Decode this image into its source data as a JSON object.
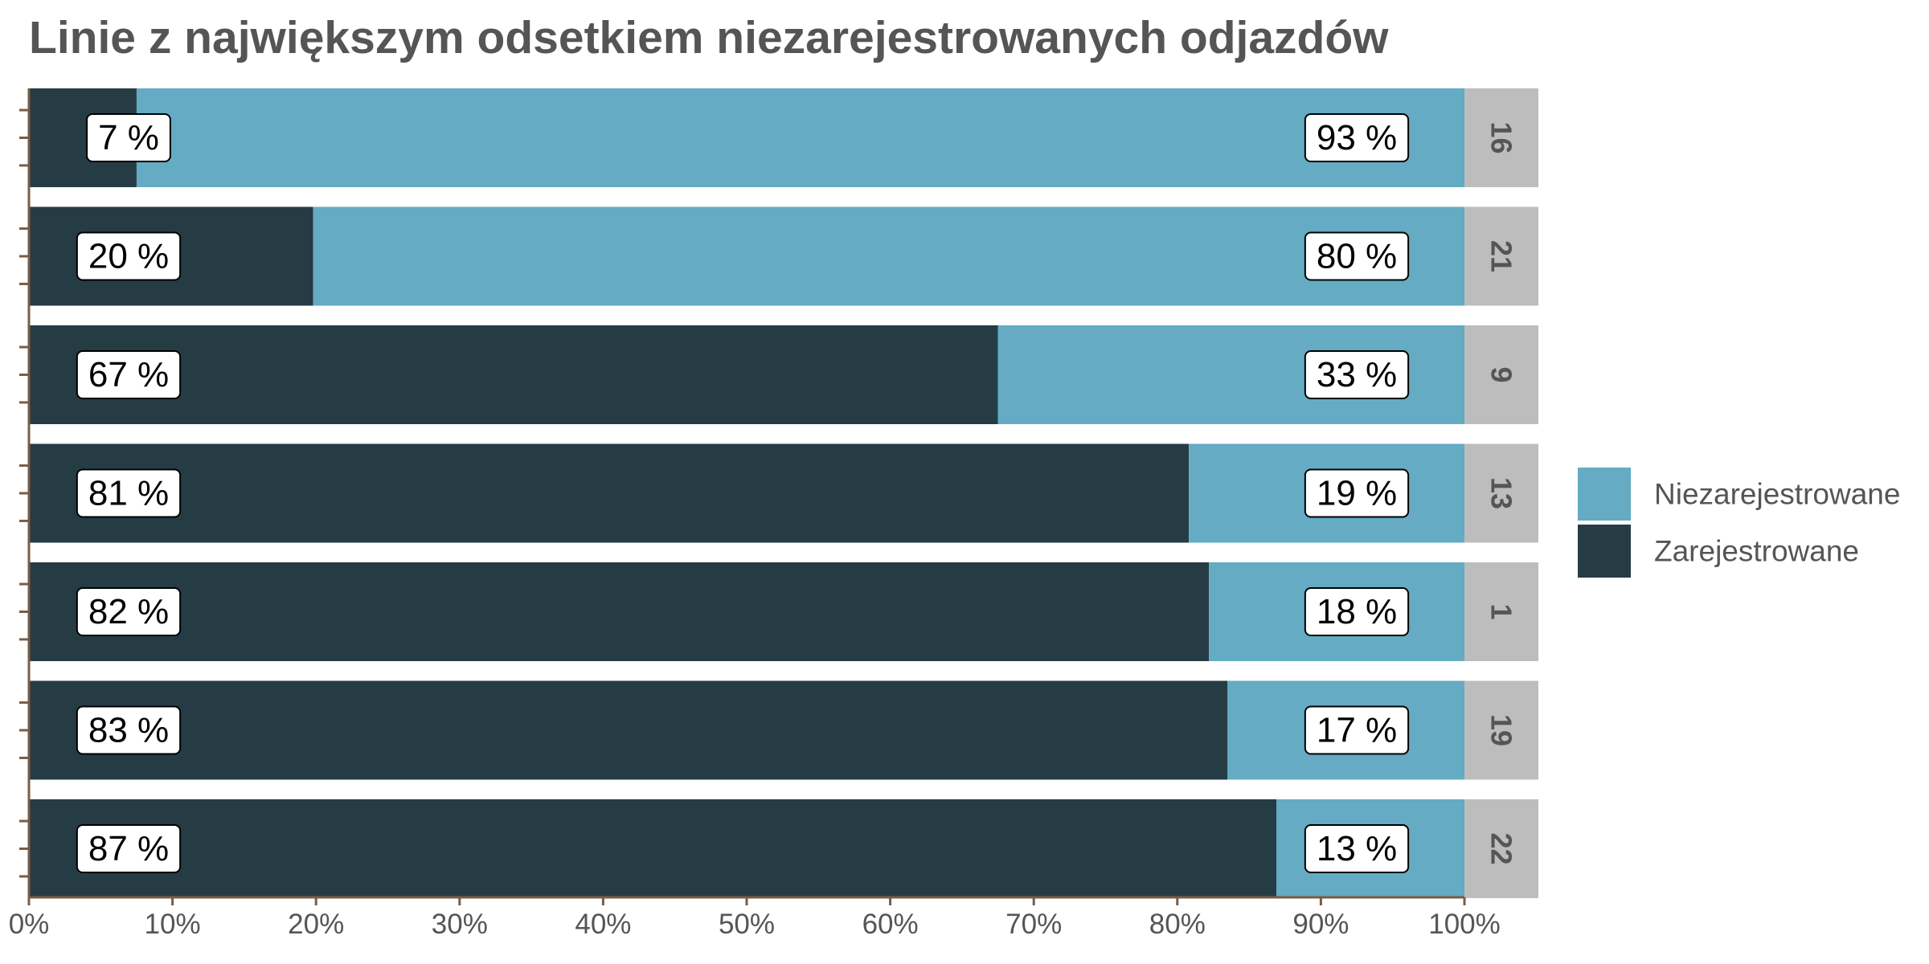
{
  "chart_data": {
    "type": "bar",
    "orientation": "horizontal",
    "stacked": "percent",
    "title": "Linie z największym odsetkiem niezarejestrowanych odjazdów",
    "xlabel": "",
    "ylabel": "",
    "xlim": [
      0,
      1
    ],
    "x_ticks": [
      "0%",
      "10%",
      "20%",
      "30%",
      "40%",
      "50%",
      "60%",
      "70%",
      "80%",
      "90%",
      "100%"
    ],
    "facet_labels": [
      "16",
      "21",
      "9",
      "13",
      "1",
      "19",
      "22"
    ],
    "series": [
      {
        "name": "Zarejestrowane",
        "color": "#253c45",
        "values": [
          0.075,
          0.198,
          0.675,
          0.808,
          0.822,
          0.835,
          0.869
        ],
        "labels": [
          "7 %",
          "20 %",
          "67 %",
          "81 %",
          "82 %",
          "83 %",
          "87 %"
        ]
      },
      {
        "name": "Niezarejestrowane",
        "color": "#64abc3",
        "values": [
          0.925,
          0.802,
          0.325,
          0.192,
          0.178,
          0.165,
          0.131
        ],
        "labels": [
          "93 %",
          "80 %",
          "33 %",
          "19 %",
          "18 %",
          "17 %",
          "13 %"
        ]
      }
    ],
    "legend": {
      "position": "right",
      "entries": [
        "Niezarejestrowane",
        "Zarejestrowane"
      ]
    },
    "grid": false,
    "colors": {
      "title": "#555555",
      "axis": "#7a5c45",
      "strip_background": "#bdbdbd",
      "label_box": "#ffffff"
    }
  }
}
